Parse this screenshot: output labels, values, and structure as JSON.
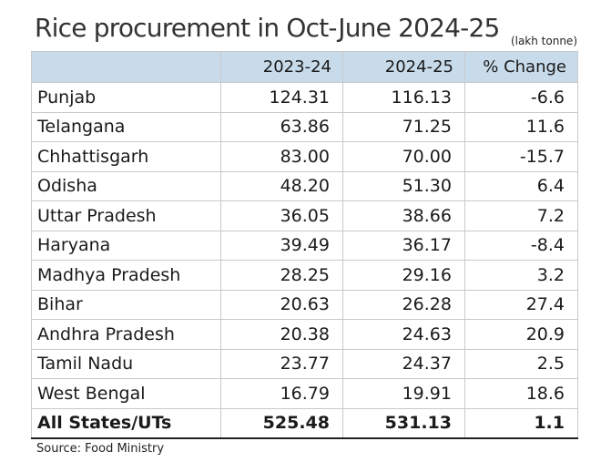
{
  "title": "Rice procurement in Oct-June 2024-25",
  "unit": "(lakh tonne)",
  "source": "Source: Food Ministry",
  "chart_data": {
    "type": "table",
    "title": "Rice procurement in Oct-June 2024-25",
    "unit": "(lakh tonne)",
    "columns": [
      "",
      "2023-24",
      "2024-25",
      "% Change"
    ],
    "rows": [
      [
        "Punjab",
        "124.31",
        "116.13",
        "-6.6"
      ],
      [
        "Telangana",
        "63.86",
        "71.25",
        "11.6"
      ],
      [
        "Chhattisgarh",
        "83.00",
        "70.00",
        "-15.7"
      ],
      [
        "Odisha",
        "48.20",
        "51.30",
        "6.4"
      ],
      [
        "Uttar Pradesh",
        "36.05",
        "38.66",
        "7.2"
      ],
      [
        "Haryana",
        "39.49",
        "36.17",
        "-8.4"
      ],
      [
        "Madhya Pradesh",
        "28.25",
        "29.16",
        "3.2"
      ],
      [
        "Bihar",
        "20.63",
        "26.28",
        "27.4"
      ],
      [
        "Andhra Pradesh",
        "20.38",
        "24.63",
        "20.9"
      ],
      [
        "Tamil Nadu",
        "23.77",
        "24.37",
        "2.5"
      ],
      [
        "West Bengal",
        "16.79",
        "19.91",
        "18.6"
      ]
    ],
    "total": [
      "All States/UTs",
      "525.48",
      "531.13",
      "1.1"
    ],
    "header_color": "#c8dbeb"
  }
}
